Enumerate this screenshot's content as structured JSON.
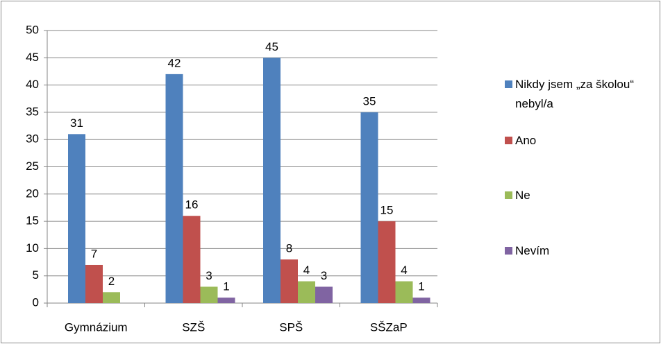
{
  "chart_data": {
    "type": "bar",
    "categories": [
      "Gymnázium",
      "SZŠ",
      "SPŠ",
      "SŠZaP"
    ],
    "series": [
      {
        "name": "Nikdy jsem „za školou“ nebyl/a",
        "color": "#4f81bd",
        "values": [
          31,
          42,
          45,
          35
        ]
      },
      {
        "name": "Ano",
        "color": "#c0504d",
        "values": [
          7,
          16,
          8,
          15
        ]
      },
      {
        "name": "Ne",
        "color": "#9bbb59",
        "values": [
          2,
          3,
          4,
          4
        ]
      },
      {
        "name": "Nevím",
        "color": "#8064a2",
        "values": [
          null,
          1,
          3,
          1
        ]
      }
    ],
    "ylim": [
      0,
      50
    ],
    "yticks": [
      0,
      5,
      10,
      15,
      20,
      25,
      30,
      35,
      40,
      45,
      50
    ],
    "grid": true,
    "legend": "right"
  }
}
